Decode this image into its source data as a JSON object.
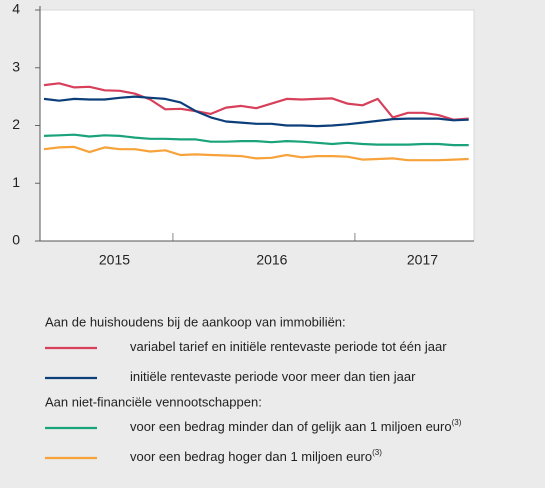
{
  "chart_data": {
    "type": "line",
    "categories": [
      "2015",
      "2015",
      "2015",
      "2015",
      "2015",
      "2015",
      "2015",
      "2015",
      "2015",
      "2016",
      "2016",
      "2016",
      "2016",
      "2016",
      "2016",
      "2016",
      "2016",
      "2016",
      "2016",
      "2016",
      "2016",
      "2017",
      "2017",
      "2017",
      "2017",
      "2017",
      "2017",
      "2017",
      "2017"
    ],
    "ylim": [
      0,
      4
    ],
    "yticks": [
      0,
      1,
      2,
      3,
      4
    ],
    "legend_groups": [
      {
        "title": "Aan de huishoudens bij de aankoop van immobiliën:",
        "series": [
          0,
          1
        ]
      },
      {
        "title": "Aan niet-financiële vennootschappen:",
        "series": [
          2,
          3
        ]
      }
    ],
    "series": [
      {
        "name": "variabel tarief en initiële rentevaste periode tot één jaar",
        "color": "#d7405a",
        "values": [
          2.7,
          2.73,
          2.66,
          2.67,
          2.61,
          2.6,
          2.55,
          2.45,
          2.28,
          2.29,
          2.25,
          2.2,
          2.31,
          2.34,
          2.3,
          2.38,
          2.46,
          2.45,
          2.46,
          2.47,
          2.38,
          2.35,
          2.46,
          2.14,
          2.22,
          2.22,
          2.18,
          2.1,
          2.12
        ]
      },
      {
        "name": "initiële rentevaste periode voor meer dan tien jaar",
        "color": "#0c3f7a",
        "values": [
          2.46,
          2.43,
          2.46,
          2.45,
          2.45,
          2.48,
          2.5,
          2.48,
          2.46,
          2.4,
          2.25,
          2.14,
          2.07,
          2.05,
          2.03,
          2.03,
          2.0,
          2.0,
          1.99,
          2.0,
          2.02,
          2.05,
          2.08,
          2.11,
          2.12,
          2.12,
          2.12,
          2.09,
          2.1
        ]
      },
      {
        "name": "voor een bedrag minder dan of gelijk aan 1 miljoen euro",
        "note": "(3)",
        "color": "#1aa37a",
        "values": [
          1.82,
          1.83,
          1.84,
          1.81,
          1.83,
          1.82,
          1.79,
          1.77,
          1.77,
          1.76,
          1.76,
          1.72,
          1.72,
          1.73,
          1.73,
          1.71,
          1.73,
          1.72,
          1.7,
          1.68,
          1.7,
          1.68,
          1.67,
          1.67,
          1.67,
          1.68,
          1.68,
          1.66,
          1.66
        ]
      },
      {
        "name": "voor een bedrag hoger dan 1 miljoen euro",
        "note": "(3)",
        "color": "#f7a23b",
        "values": [
          1.59,
          1.62,
          1.63,
          1.54,
          1.62,
          1.59,
          1.59,
          1.55,
          1.57,
          1.49,
          1.5,
          1.49,
          1.48,
          1.47,
          1.43,
          1.44,
          1.49,
          1.45,
          1.47,
          1.47,
          1.46,
          1.41,
          1.42,
          1.43,
          1.4,
          1.4,
          1.4,
          1.41,
          1.42
        ]
      }
    ]
  }
}
